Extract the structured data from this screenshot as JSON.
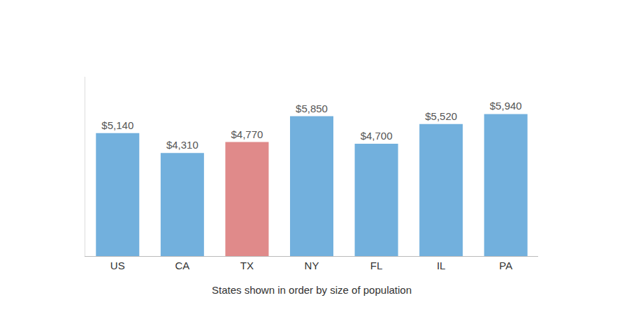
{
  "chart_data": {
    "type": "bar",
    "categories": [
      "US",
      "CA",
      "TX",
      "NY",
      "FL",
      "IL",
      "PA"
    ],
    "values": [
      5140,
      4310,
      4770,
      5850,
      4700,
      5520,
      5940
    ],
    "value_labels": [
      "$5,140",
      "$4,310",
      "$4,770",
      "$5,850",
      "$4,700",
      "$5,520",
      "$5,940"
    ],
    "colors": [
      "#72b0dd",
      "#72b0dd",
      "#e08a8a",
      "#72b0dd",
      "#72b0dd",
      "#72b0dd",
      "#72b0dd"
    ],
    "x_label": "States shown in order by size of population",
    "ylim": [
      0,
      7500
    ],
    "grid": false,
    "data_labels": true,
    "tick_labels": "x"
  }
}
